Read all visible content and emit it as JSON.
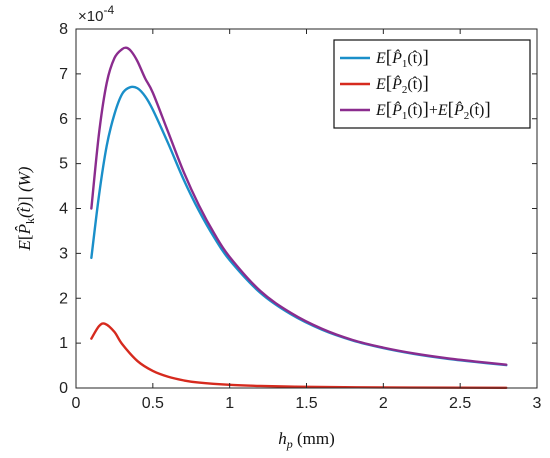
{
  "chart_data": {
    "type": "line",
    "title": "",
    "xlabel": "h_p (mm)",
    "ylabel": "E[P̂_k(t̂)] (W)",
    "xlim": [
      0,
      3
    ],
    "ylim": [
      0,
      8
    ],
    "y_exponent": "×10^-4",
    "x_ticks": [
      "0",
      "0.5",
      "1",
      "1.5",
      "2",
      "2.5",
      "3"
    ],
    "y_ticks": [
      "0",
      "1",
      "2",
      "3",
      "4",
      "5",
      "6",
      "7",
      "8"
    ],
    "grid": false,
    "legend_position": "top-right",
    "series": [
      {
        "name": "E[P̂1(t̂)]",
        "color": "#1a8fc9",
        "x": [
          0.1,
          0.15,
          0.2,
          0.25,
          0.3,
          0.35,
          0.4,
          0.45,
          0.5,
          0.6,
          0.7,
          0.8,
          0.9,
          1.0,
          1.2,
          1.4,
          1.6,
          1.8,
          2.0,
          2.2,
          2.4,
          2.6,
          2.8
        ],
        "values": [
          2.9,
          4.3,
          5.4,
          6.1,
          6.55,
          6.7,
          6.68,
          6.5,
          6.2,
          5.45,
          4.65,
          3.95,
          3.35,
          2.85,
          2.12,
          1.64,
          1.3,
          1.06,
          0.89,
          0.76,
          0.66,
          0.58,
          0.51
        ]
      },
      {
        "name": "E[P̂2(t̂)]",
        "color": "#d62a1e",
        "x": [
          0.1,
          0.15,
          0.19,
          0.25,
          0.3,
          0.4,
          0.5,
          0.6,
          0.7,
          0.8,
          1.0,
          1.2,
          1.5,
          2.0,
          2.5,
          2.8
        ],
        "values": [
          1.1,
          1.38,
          1.43,
          1.25,
          0.98,
          0.6,
          0.38,
          0.25,
          0.17,
          0.12,
          0.07,
          0.045,
          0.025,
          0.012,
          0.006,
          0.004
        ]
      },
      {
        "name": "E[P̂1(t̂)]+E[P̂2(t̂)]",
        "color": "#8b2c8e",
        "x": [
          0.1,
          0.15,
          0.2,
          0.25,
          0.3,
          0.33,
          0.36,
          0.4,
          0.45,
          0.5,
          0.6,
          0.7,
          0.8,
          0.9,
          1.0,
          1.2,
          1.4,
          1.6,
          1.8,
          2.0,
          2.2,
          2.4,
          2.6,
          2.8
        ],
        "values": [
          4.0,
          5.68,
          6.8,
          7.35,
          7.55,
          7.58,
          7.5,
          7.28,
          6.9,
          6.58,
          5.7,
          4.82,
          4.07,
          3.44,
          2.92,
          2.16,
          1.67,
          1.32,
          1.07,
          0.9,
          0.77,
          0.67,
          0.59,
          0.52
        ]
      }
    ]
  },
  "legend": {
    "entries": [
      {
        "prefix": "E",
        "open": "[",
        "base": "P̂",
        "sub": "1",
        "arg": "(t̂)",
        "close": "]"
      },
      {
        "prefix": "E",
        "open": "[",
        "base": "P̂",
        "sub": "2",
        "arg": "(t̂)",
        "close": "]"
      },
      {
        "prefix": "E",
        "open": "[",
        "base": "P̂",
        "sub": "1",
        "arg": "(t̂)",
        "close": "]",
        "plus": "+",
        "prefix2": "E",
        "open2": "[",
        "base2": "P̂",
        "sub2": "2",
        "arg2": "(t̂)",
        "close2": "]"
      }
    ]
  },
  "axis_text": {
    "x_main": "h",
    "x_sub": "p",
    "x_unit": " (mm)",
    "y_prefix": "E",
    "y_open": "[",
    "y_base": "P̂",
    "y_sub": "k",
    "y_arg": "(t̂)",
    "y_close": "]",
    "y_unit": " (W)",
    "exp_base": "×10",
    "exp_power": "-4"
  }
}
